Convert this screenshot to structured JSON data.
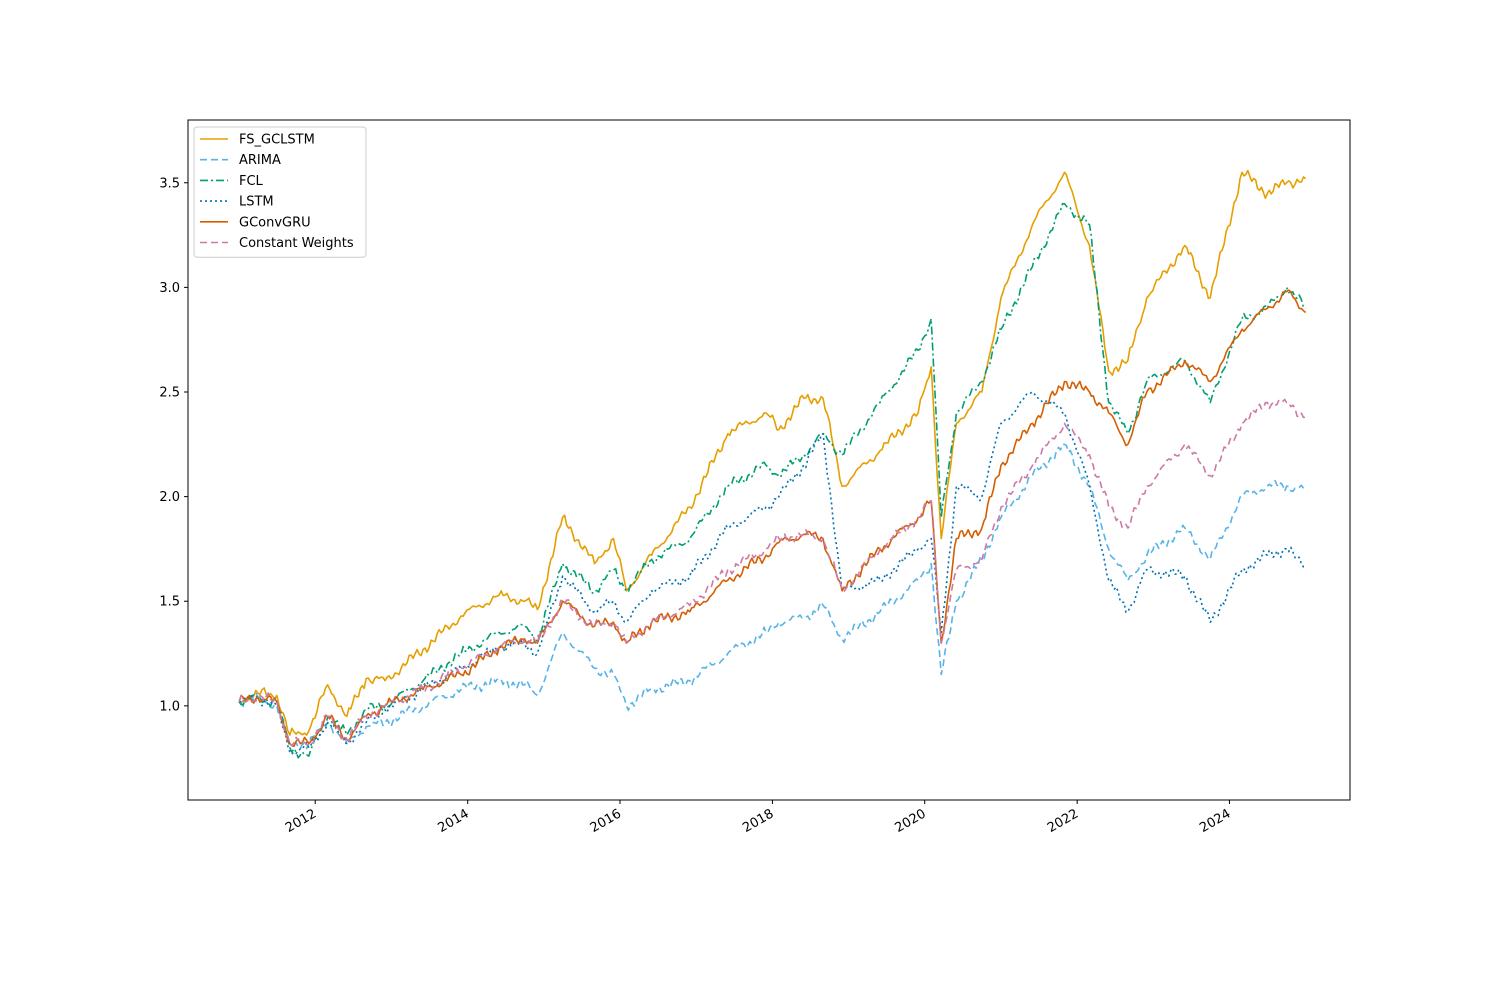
{
  "chart_data": {
    "type": "line",
    "title": "",
    "xlabel": "",
    "ylabel": "",
    "x_axis": {
      "kind": "date",
      "range": [
        "2010-05-01",
        "2025-08-01"
      ],
      "ticks": [
        "2012",
        "2014",
        "2016",
        "2018",
        "2020",
        "2022",
        "2024"
      ]
    },
    "y_axis": {
      "range": [
        0.55,
        3.8
      ],
      "ticks": [
        "1.0",
        "1.5",
        "2.0",
        "2.5",
        "3.0",
        "3.5"
      ]
    },
    "grid": false,
    "legend_position": "upper-left",
    "series": [
      {
        "name": "FS_GCLSTM",
        "color": "#E69F00",
        "style": "solid",
        "points": [
          [
            "2011-01-01",
            1.02
          ],
          [
            "2011-04-01",
            1.06
          ],
          [
            "2011-07-01",
            1.05
          ],
          [
            "2011-09-01",
            0.86
          ],
          [
            "2011-12-01",
            0.88
          ],
          [
            "2012-03-01",
            1.1
          ],
          [
            "2012-06-01",
            0.95
          ],
          [
            "2012-09-01",
            1.13
          ],
          [
            "2012-12-01",
            1.12
          ],
          [
            "2013-06-01",
            1.27
          ],
          [
            "2013-12-01",
            1.43
          ],
          [
            "2014-06-01",
            1.53
          ],
          [
            "2014-10-01",
            1.5
          ],
          [
            "2014-12-01",
            1.46
          ],
          [
            "2015-04-01",
            1.9
          ],
          [
            "2015-09-01",
            1.68
          ],
          [
            "2015-12-01",
            1.8
          ],
          [
            "2016-02-01",
            1.55
          ],
          [
            "2016-06-01",
            1.72
          ],
          [
            "2016-12-01",
            1.95
          ],
          [
            "2017-06-01",
            2.3
          ],
          [
            "2017-12-01",
            2.4
          ],
          [
            "2018-02-01",
            2.32
          ],
          [
            "2018-06-01",
            2.47
          ],
          [
            "2018-09-01",
            2.47
          ],
          [
            "2018-12-01",
            2.05
          ],
          [
            "2019-06-01",
            2.22
          ],
          [
            "2019-12-01",
            2.4
          ],
          [
            "2020-02-01",
            2.62
          ],
          [
            "2020-03-20",
            1.8
          ],
          [
            "2020-06-01",
            2.35
          ],
          [
            "2020-10-01",
            2.5
          ],
          [
            "2021-01-01",
            2.95
          ],
          [
            "2021-06-01",
            3.3
          ],
          [
            "2021-11-01",
            3.55
          ],
          [
            "2022-03-01",
            3.2
          ],
          [
            "2022-06-01",
            2.6
          ],
          [
            "2022-09-01",
            2.65
          ],
          [
            "2022-12-01",
            2.95
          ],
          [
            "2023-06-01",
            3.2
          ],
          [
            "2023-10-01",
            2.95
          ],
          [
            "2024-03-01",
            3.55
          ],
          [
            "2024-07-01",
            3.45
          ],
          [
            "2024-10-01",
            3.5
          ],
          [
            "2024-12-31",
            3.52
          ]
        ]
      },
      {
        "name": "ARIMA",
        "color": "#56B4E9",
        "style": "dashed",
        "points": [
          [
            "2011-01-01",
            1.02
          ],
          [
            "2011-04-01",
            1.04
          ],
          [
            "2011-07-01",
            1.0
          ],
          [
            "2011-09-01",
            0.82
          ],
          [
            "2011-12-01",
            0.82
          ],
          [
            "2012-03-01",
            0.92
          ],
          [
            "2012-06-01",
            0.82
          ],
          [
            "2012-09-01",
            0.9
          ],
          [
            "2012-12-01",
            0.92
          ],
          [
            "2013-06-01",
            1.0
          ],
          [
            "2013-12-01",
            1.08
          ],
          [
            "2014-06-01",
            1.12
          ],
          [
            "2014-10-01",
            1.1
          ],
          [
            "2014-12-01",
            1.05
          ],
          [
            "2015-04-01",
            1.35
          ],
          [
            "2015-09-01",
            1.18
          ],
          [
            "2015-12-01",
            1.15
          ],
          [
            "2016-02-01",
            1.0
          ],
          [
            "2016-06-01",
            1.08
          ],
          [
            "2016-12-01",
            1.12
          ],
          [
            "2017-06-01",
            1.25
          ],
          [
            "2017-12-01",
            1.35
          ],
          [
            "2018-02-01",
            1.4
          ],
          [
            "2018-06-01",
            1.42
          ],
          [
            "2018-09-01",
            1.48
          ],
          [
            "2018-12-01",
            1.32
          ],
          [
            "2019-06-01",
            1.45
          ],
          [
            "2019-12-01",
            1.6
          ],
          [
            "2020-02-01",
            1.68
          ],
          [
            "2020-03-20",
            1.15
          ],
          [
            "2020-06-01",
            1.5
          ],
          [
            "2020-10-01",
            1.7
          ],
          [
            "2021-01-01",
            1.9
          ],
          [
            "2021-06-01",
            2.1
          ],
          [
            "2021-11-01",
            2.25
          ],
          [
            "2022-03-01",
            2.05
          ],
          [
            "2022-06-01",
            1.75
          ],
          [
            "2022-09-01",
            1.6
          ],
          [
            "2022-12-01",
            1.72
          ],
          [
            "2023-06-01",
            1.85
          ],
          [
            "2023-10-01",
            1.7
          ],
          [
            "2024-03-01",
            2.0
          ],
          [
            "2024-07-01",
            2.05
          ],
          [
            "2024-10-01",
            2.05
          ],
          [
            "2024-12-31",
            2.03
          ]
        ]
      },
      {
        "name": "FCL",
        "color": "#009E73",
        "style": "dashdot",
        "points": [
          [
            "2011-01-01",
            1.02
          ],
          [
            "2011-04-01",
            1.04
          ],
          [
            "2011-07-01",
            1.02
          ],
          [
            "2011-09-01",
            0.8
          ],
          [
            "2011-12-01",
            0.76
          ],
          [
            "2012-03-01",
            0.95
          ],
          [
            "2012-06-01",
            0.86
          ],
          [
            "2012-09-01",
            0.98
          ],
          [
            "2012-12-01",
            1.0
          ],
          [
            "2013-06-01",
            1.12
          ],
          [
            "2013-12-01",
            1.25
          ],
          [
            "2014-06-01",
            1.35
          ],
          [
            "2014-10-01",
            1.38
          ],
          [
            "2014-12-01",
            1.32
          ],
          [
            "2015-04-01",
            1.68
          ],
          [
            "2015-09-01",
            1.55
          ],
          [
            "2015-12-01",
            1.65
          ],
          [
            "2016-02-01",
            1.55
          ],
          [
            "2016-06-01",
            1.7
          ],
          [
            "2016-12-01",
            1.8
          ],
          [
            "2017-06-01",
            2.05
          ],
          [
            "2017-12-01",
            2.15
          ],
          [
            "2018-02-01",
            2.1
          ],
          [
            "2018-06-01",
            2.2
          ],
          [
            "2018-09-01",
            2.3
          ],
          [
            "2018-12-01",
            2.2
          ],
          [
            "2019-06-01",
            2.45
          ],
          [
            "2019-12-01",
            2.7
          ],
          [
            "2020-02-01",
            2.85
          ],
          [
            "2020-03-20",
            1.9
          ],
          [
            "2020-06-01",
            2.4
          ],
          [
            "2020-10-01",
            2.55
          ],
          [
            "2021-01-01",
            2.8
          ],
          [
            "2021-06-01",
            3.1
          ],
          [
            "2021-11-01",
            3.4
          ],
          [
            "2022-03-01",
            3.3
          ],
          [
            "2022-06-01",
            2.45
          ],
          [
            "2022-09-01",
            2.3
          ],
          [
            "2022-12-01",
            2.55
          ],
          [
            "2023-06-01",
            2.65
          ],
          [
            "2023-10-01",
            2.45
          ],
          [
            "2024-03-01",
            2.85
          ],
          [
            "2024-07-01",
            2.9
          ],
          [
            "2024-10-01",
            3.0
          ],
          [
            "2024-12-31",
            2.9
          ]
        ]
      },
      {
        "name": "LSTM",
        "color": "#0072B2",
        "style": "dotted",
        "points": [
          [
            "2011-01-01",
            1.02
          ],
          [
            "2011-04-01",
            1.04
          ],
          [
            "2011-07-01",
            1.0
          ],
          [
            "2011-09-01",
            0.78
          ],
          [
            "2011-12-01",
            0.8
          ],
          [
            "2012-03-01",
            0.92
          ],
          [
            "2012-06-01",
            0.82
          ],
          [
            "2012-09-01",
            0.92
          ],
          [
            "2012-12-01",
            0.98
          ],
          [
            "2013-06-01",
            1.08
          ],
          [
            "2013-12-01",
            1.18
          ],
          [
            "2014-06-01",
            1.28
          ],
          [
            "2014-10-01",
            1.3
          ],
          [
            "2014-12-01",
            1.25
          ],
          [
            "2015-04-01",
            1.62
          ],
          [
            "2015-09-01",
            1.45
          ],
          [
            "2015-12-01",
            1.5
          ],
          [
            "2016-02-01",
            1.4
          ],
          [
            "2016-06-01",
            1.55
          ],
          [
            "2016-12-01",
            1.62
          ],
          [
            "2017-06-01",
            1.85
          ],
          [
            "2017-12-01",
            1.95
          ],
          [
            "2018-02-01",
            2.0
          ],
          [
            "2018-06-01",
            2.15
          ],
          [
            "2018-09-01",
            2.3
          ],
          [
            "2018-12-01",
            1.55
          ],
          [
            "2019-06-01",
            1.6
          ],
          [
            "2019-12-01",
            1.75
          ],
          [
            "2020-02-01",
            1.8
          ],
          [
            "2020-03-20",
            1.35
          ],
          [
            "2020-06-01",
            2.05
          ],
          [
            "2020-10-01",
            2.0
          ],
          [
            "2021-01-01",
            2.35
          ],
          [
            "2021-06-01",
            2.5
          ],
          [
            "2021-11-01",
            2.4
          ],
          [
            "2022-03-01",
            2.05
          ],
          [
            "2022-06-01",
            1.6
          ],
          [
            "2022-09-01",
            1.45
          ],
          [
            "2022-12-01",
            1.65
          ],
          [
            "2023-06-01",
            1.62
          ],
          [
            "2023-10-01",
            1.4
          ],
          [
            "2024-03-01",
            1.65
          ],
          [
            "2024-07-01",
            1.72
          ],
          [
            "2024-10-01",
            1.75
          ],
          [
            "2024-12-31",
            1.66
          ]
        ]
      },
      {
        "name": "GConvGRU",
        "color": "#D55E00",
        "style": "solid",
        "points": [
          [
            "2011-01-01",
            1.02
          ],
          [
            "2011-04-01",
            1.04
          ],
          [
            "2011-07-01",
            1.02
          ],
          [
            "2011-09-01",
            0.82
          ],
          [
            "2011-12-01",
            0.82
          ],
          [
            "2012-03-01",
            0.95
          ],
          [
            "2012-06-01",
            0.84
          ],
          [
            "2012-09-01",
            0.95
          ],
          [
            "2012-12-01",
            1.0
          ],
          [
            "2013-06-01",
            1.08
          ],
          [
            "2013-12-01",
            1.15
          ],
          [
            "2014-06-01",
            1.28
          ],
          [
            "2014-10-01",
            1.32
          ],
          [
            "2014-12-01",
            1.3
          ],
          [
            "2015-04-01",
            1.5
          ],
          [
            "2015-09-01",
            1.38
          ],
          [
            "2015-12-01",
            1.4
          ],
          [
            "2016-02-01",
            1.3
          ],
          [
            "2016-06-01",
            1.4
          ],
          [
            "2016-12-01",
            1.45
          ],
          [
            "2017-06-01",
            1.6
          ],
          [
            "2017-12-01",
            1.72
          ],
          [
            "2018-02-01",
            1.78
          ],
          [
            "2018-06-01",
            1.82
          ],
          [
            "2018-09-01",
            1.8
          ],
          [
            "2018-12-01",
            1.55
          ],
          [
            "2019-06-01",
            1.75
          ],
          [
            "2019-12-01",
            1.9
          ],
          [
            "2020-02-01",
            1.98
          ],
          [
            "2020-03-20",
            1.3
          ],
          [
            "2020-06-01",
            1.8
          ],
          [
            "2020-10-01",
            1.85
          ],
          [
            "2021-01-01",
            2.15
          ],
          [
            "2021-06-01",
            2.35
          ],
          [
            "2021-11-01",
            2.55
          ],
          [
            "2022-03-01",
            2.5
          ],
          [
            "2022-06-01",
            2.4
          ],
          [
            "2022-09-01",
            2.25
          ],
          [
            "2022-12-01",
            2.5
          ],
          [
            "2023-06-01",
            2.65
          ],
          [
            "2023-10-01",
            2.55
          ],
          [
            "2024-03-01",
            2.8
          ],
          [
            "2024-07-01",
            2.9
          ],
          [
            "2024-10-01",
            2.98
          ],
          [
            "2024-12-31",
            2.88
          ]
        ]
      },
      {
        "name": "Constant Weights",
        "color": "#CC79A7",
        "style": "dashed",
        "points": [
          [
            "2011-01-01",
            1.02
          ],
          [
            "2011-04-01",
            1.04
          ],
          [
            "2011-07-01",
            1.02
          ],
          [
            "2011-09-01",
            0.82
          ],
          [
            "2011-12-01",
            0.82
          ],
          [
            "2012-03-01",
            0.95
          ],
          [
            "2012-06-01",
            0.84
          ],
          [
            "2012-09-01",
            0.95
          ],
          [
            "2012-12-01",
            1.0
          ],
          [
            "2013-06-01",
            1.08
          ],
          [
            "2013-12-01",
            1.18
          ],
          [
            "2014-06-01",
            1.28
          ],
          [
            "2014-10-01",
            1.32
          ],
          [
            "2014-12-01",
            1.3
          ],
          [
            "2015-04-01",
            1.5
          ],
          [
            "2015-09-01",
            1.38
          ],
          [
            "2015-12-01",
            1.4
          ],
          [
            "2016-02-01",
            1.3
          ],
          [
            "2016-06-01",
            1.4
          ],
          [
            "2016-12-01",
            1.48
          ],
          [
            "2017-06-01",
            1.65
          ],
          [
            "2017-12-01",
            1.75
          ],
          [
            "2018-02-01",
            1.8
          ],
          [
            "2018-06-01",
            1.82
          ],
          [
            "2018-09-01",
            1.8
          ],
          [
            "2018-12-01",
            1.55
          ],
          [
            "2019-06-01",
            1.75
          ],
          [
            "2019-12-01",
            1.9
          ],
          [
            "2020-02-01",
            1.98
          ],
          [
            "2020-03-20",
            1.3
          ],
          [
            "2020-06-01",
            1.65
          ],
          [
            "2020-10-01",
            1.7
          ],
          [
            "2021-01-01",
            1.95
          ],
          [
            "2021-06-01",
            2.15
          ],
          [
            "2021-11-01",
            2.35
          ],
          [
            "2022-03-01",
            2.2
          ],
          [
            "2022-06-01",
            1.95
          ],
          [
            "2022-09-01",
            1.85
          ],
          [
            "2022-12-01",
            2.05
          ],
          [
            "2023-06-01",
            2.25
          ],
          [
            "2023-10-01",
            2.1
          ],
          [
            "2024-03-01",
            2.35
          ],
          [
            "2024-07-01",
            2.45
          ],
          [
            "2024-10-01",
            2.45
          ],
          [
            "2024-12-31",
            2.38
          ]
        ]
      }
    ]
  }
}
